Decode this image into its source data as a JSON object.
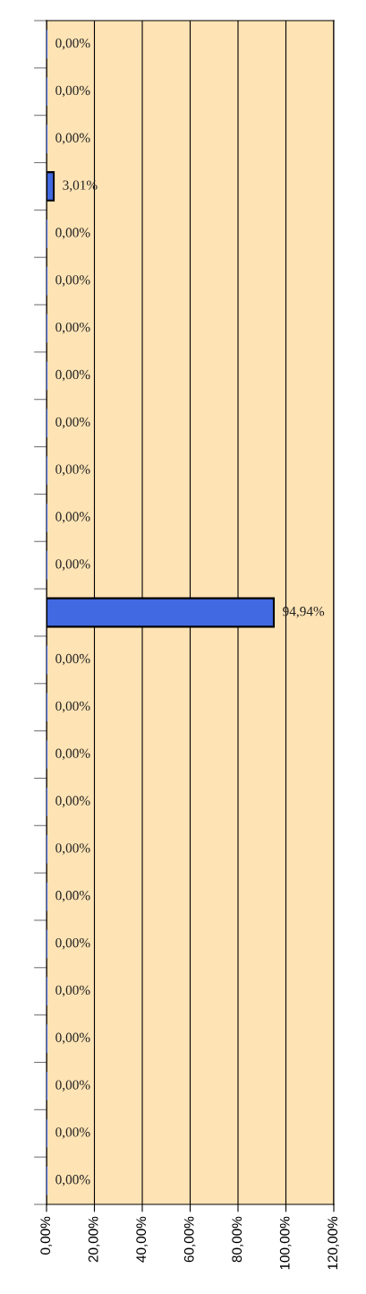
{
  "chart_data": {
    "type": "bar",
    "orientation": "horizontal",
    "categories": [
      null,
      null,
      null,
      null,
      null,
      null,
      null,
      null,
      null,
      null,
      null,
      null,
      null,
      null,
      null,
      null,
      null,
      null,
      null,
      null,
      null,
      null,
      null,
      null,
      null
    ],
    "values": [
      0,
      0,
      0,
      3.01,
      0,
      0,
      0,
      0,
      0,
      0,
      0,
      0,
      94.94,
      0,
      0,
      0,
      0,
      0,
      0,
      0,
      0,
      0,
      0,
      0,
      0
    ],
    "value_labels": [
      "0,00%",
      "0,00%",
      "0,00%",
      "3,01%",
      "0,00%",
      "0,00%",
      "0,00%",
      "0,00%",
      "0,00%",
      "0,00%",
      "0,00%",
      "0,00%",
      "94,94%",
      "0,00%",
      "0,00%",
      "0,00%",
      "0,00%",
      "0,00%",
      "0,00%",
      "0,00%",
      "0,00%",
      "0,00%",
      "0,00%",
      "0,00%",
      "0,00%"
    ],
    "color": "#4169e1",
    "xlim": [
      0,
      120
    ],
    "xticks": [
      {
        "value": 0,
        "label": "0,00%"
      },
      {
        "value": 20,
        "label": "20,00%"
      },
      {
        "value": 40,
        "label": "40,00%"
      },
      {
        "value": 60,
        "label": "60,00%"
      },
      {
        "value": 80,
        "label": "80,00%"
      },
      {
        "value": 100,
        "label": "100,00%"
      },
      {
        "value": 120,
        "label": "120,00%"
      }
    ],
    "grid": "x"
  }
}
